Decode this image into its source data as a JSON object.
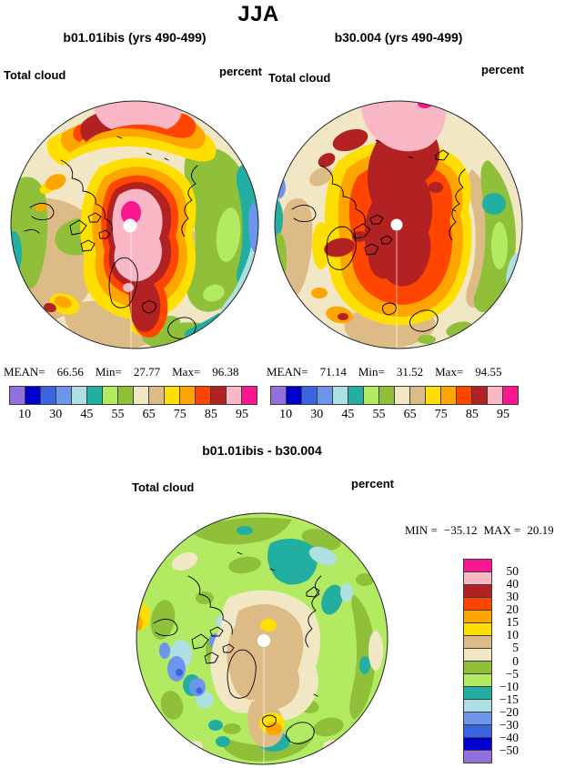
{
  "page_title": "JJA",
  "panels": {
    "left": {
      "title": "b01.01ibis (yrs 490-499)",
      "field": "Total cloud",
      "units": "percent",
      "stats": {
        "mean_label": "MEAN=",
        "mean": "66.56",
        "min_label": "Min=",
        "min": "27.77",
        "max_label": "Max=",
        "max": "96.38"
      }
    },
    "right": {
      "title": "b30.004 (yrs 490-499)",
      "field": "Total cloud",
      "units": "percent",
      "stats": {
        "mean_label": "MEAN=",
        "mean": "71.14",
        "min_label": "Min=",
        "min": "31.52",
        "max_label": "Max=",
        "max": "94.55"
      }
    },
    "diff": {
      "title": "b01.01ibis - b30.004",
      "field": "Total cloud",
      "units": "percent",
      "stats": {
        "min_label": "MIN =",
        "min": "−35.12",
        "max_label": "MAX =",
        "max": "20.19"
      }
    }
  },
  "cloud_colorbar": {
    "tick_labels": [
      "10",
      "30",
      "45",
      "55",
      "65",
      "75",
      "85",
      "95"
    ],
    "colors": [
      "#9370DB",
      "#0000CC",
      "#3A64E0",
      "#6D95EC",
      "#AEDFE2",
      "#22AFA2",
      "#B2EB61",
      "#90C03A",
      "#F2E7C5",
      "#DDBB87",
      "#FFDF00",
      "#FFA500",
      "#FF4500",
      "#B22222",
      "#FAB8C7",
      "#FB1691"
    ]
  },
  "diff_colorbar": {
    "labels": [
      "50",
      "40",
      "30",
      "20",
      "15",
      "10",
      "5",
      "0",
      "−5",
      "−10",
      "−15",
      "−20",
      "−30",
      "−40",
      "−50"
    ],
    "colors_top_to_bottom": [
      "#FB1691",
      "#FAB8C7",
      "#B22222",
      "#FF4500",
      "#FFA500",
      "#FFDF00",
      "#DDBB87",
      "#F2E7C5",
      "#90C03A",
      "#B2EB61",
      "#22AFA2",
      "#AEDFE2",
      "#6D95EC",
      "#3A64E0",
      "#0000CC",
      "#9370DB"
    ]
  },
  "chart_data": [
    {
      "type": "heatmap",
      "subtype": "filled-contour-map",
      "projection": "north-polar-stereographic",
      "panel": "left",
      "season": "JJA",
      "title": "b01.01ibis (yrs 490-499)",
      "variable": "Total cloud",
      "units": "percent",
      "mean": 66.56,
      "min": 27.77,
      "max": 96.38,
      "contour_levels": [
        10,
        20,
        30,
        40,
        45,
        50,
        55,
        60,
        65,
        70,
        75,
        80,
        85,
        90,
        95
      ],
      "colorbar_tick_labels": [
        10,
        30,
        45,
        55,
        65,
        75,
        85,
        95
      ],
      "palette_low_to_high": [
        "#9370DB",
        "#0000CC",
        "#3A64E0",
        "#6D95EC",
        "#AEDFE2",
        "#22AFA2",
        "#B2EB61",
        "#90C03A",
        "#F2E7C5",
        "#DDBB87",
        "#FFDF00",
        "#FFA500",
        "#FF4500",
        "#B22222",
        "#FAB8C7",
        "#FB1691"
      ],
      "legend_position": "bottom"
    },
    {
      "type": "heatmap",
      "subtype": "filled-contour-map",
      "projection": "north-polar-stereographic",
      "panel": "right",
      "season": "JJA",
      "title": "b30.004 (yrs 490-499)",
      "variable": "Total cloud",
      "units": "percent",
      "mean": 71.14,
      "min": 31.52,
      "max": 94.55,
      "contour_levels": [
        10,
        20,
        30,
        40,
        45,
        50,
        55,
        60,
        65,
        70,
        75,
        80,
        85,
        90,
        95
      ],
      "colorbar_tick_labels": [
        10,
        30,
        45,
        55,
        65,
        75,
        85,
        95
      ],
      "palette_low_to_high": [
        "#9370DB",
        "#0000CC",
        "#3A64E0",
        "#6D95EC",
        "#AEDFE2",
        "#22AFA2",
        "#B2EB61",
        "#90C03A",
        "#F2E7C5",
        "#DDBB87",
        "#FFDF00",
        "#FFA500",
        "#FF4500",
        "#B22222",
        "#FAB8C7",
        "#FB1691"
      ],
      "legend_position": "bottom"
    },
    {
      "type": "heatmap",
      "subtype": "filled-contour-map",
      "projection": "north-polar-stereographic",
      "panel": "difference",
      "title": "b01.01ibis - b30.004",
      "variable": "Total cloud",
      "units": "percent",
      "min": -35.12,
      "max": 20.19,
      "contour_levels": [
        -50,
        -40,
        -30,
        -20,
        -15,
        -10,
        -5,
        0,
        5,
        10,
        15,
        20,
        30,
        40,
        50
      ],
      "palette_low_to_high": [
        "#9370DB",
        "#0000CC",
        "#3A64E0",
        "#6D95EC",
        "#AEDFE2",
        "#22AFA2",
        "#B2EB61",
        "#90C03A",
        "#F2E7C5",
        "#DDBB87",
        "#FFDF00",
        "#FFA500",
        "#FF4500",
        "#B22222",
        "#FAB8C7",
        "#FB1691"
      ],
      "legend_position": "right"
    }
  ]
}
